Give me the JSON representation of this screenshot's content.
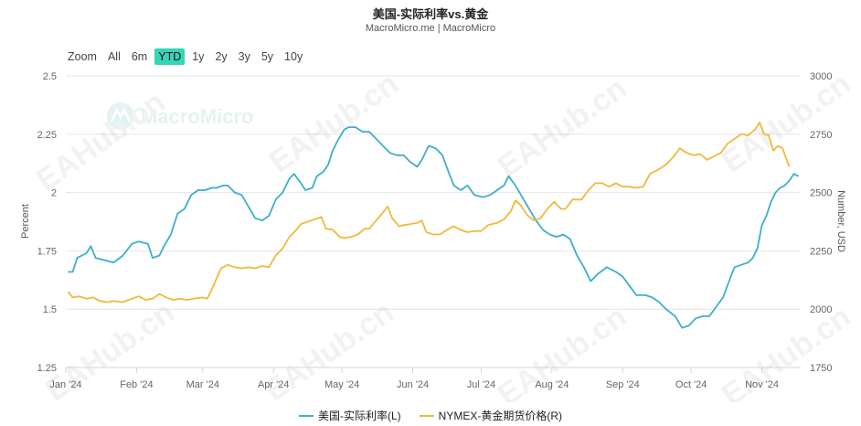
{
  "header": {
    "title": "美国-实际利率vs.黄金",
    "subtitle": "MacroMicro.me | MacroMicro"
  },
  "zoom": {
    "label": "Zoom",
    "buttons": [
      "All",
      "6m",
      "YTD",
      "1y",
      "2y",
      "3y",
      "5y",
      "10y"
    ],
    "active": "YTD"
  },
  "watermarks": {
    "brand": "MacroMicro",
    "site": "EAHub.cn"
  },
  "colors": {
    "real_rate": "#3eaecb",
    "gold": "#f0b93a",
    "zoom_active": "#35d5b8"
  },
  "chart_data": {
    "type": "line",
    "title": "美国-实际利率vs.黄金",
    "subtitle": "MacroMicro.me | MacroMicro",
    "x_type": "date",
    "x_ticks": [
      "Jan '24",
      "Feb '24",
      "Mar '24",
      "Apr '24",
      "May '24",
      "Jun '24",
      "Jul '24",
      "Aug '24",
      "Sep '24",
      "Oct '24",
      "Nov '24"
    ],
    "x_tick_dates": [
      "2024-01-01",
      "2024-02-01",
      "2024-03-01",
      "2024-04-01",
      "2024-05-01",
      "2024-06-01",
      "2024-07-01",
      "2024-08-01",
      "2024-09-01",
      "2024-10-01",
      "2024-11-01"
    ],
    "left_axis": {
      "label": "Percent",
      "range": [
        1.25,
        2.5
      ],
      "ticks": [
        1.25,
        1.5,
        1.75,
        2,
        2.25,
        2.5
      ],
      "tick_labels": [
        "1.25",
        "1.5",
        "1.75",
        "2",
        "2.25",
        "2.5"
      ]
    },
    "right_axis": {
      "label": "Number, USD",
      "range": [
        1750,
        3000
      ],
      "ticks": [
        1750,
        2000,
        2250,
        2500,
        2750,
        3000
      ],
      "tick_labels": [
        "1750",
        "2000",
        "2250",
        "2500",
        "2750",
        "3000"
      ]
    },
    "grid": true,
    "legend_position": "bottom-center",
    "series": [
      {
        "name": "美国-实际利率(L)",
        "axis": "left",
        "color": "#3eaecb",
        "points": [
          [
            "2024-01-02",
            1.66
          ],
          [
            "2024-01-04",
            1.66
          ],
          [
            "2024-01-06",
            1.72
          ],
          [
            "2024-01-10",
            1.74
          ],
          [
            "2024-01-12",
            1.77
          ],
          [
            "2024-01-14",
            1.72
          ],
          [
            "2024-01-18",
            1.71
          ],
          [
            "2024-01-22",
            1.7
          ],
          [
            "2024-01-26",
            1.73
          ],
          [
            "2024-01-30",
            1.78
          ],
          [
            "2024-02-02",
            1.79
          ],
          [
            "2024-02-06",
            1.78
          ],
          [
            "2024-02-08",
            1.72
          ],
          [
            "2024-02-11",
            1.73
          ],
          [
            "2024-02-13",
            1.77
          ],
          [
            "2024-02-16",
            1.82
          ],
          [
            "2024-02-19",
            1.91
          ],
          [
            "2024-02-22",
            1.93
          ],
          [
            "2024-02-25",
            1.99
          ],
          [
            "2024-02-28",
            2.01
          ],
          [
            "2024-03-02",
            2.01
          ],
          [
            "2024-03-05",
            2.02
          ],
          [
            "2024-03-07",
            2.02
          ],
          [
            "2024-03-10",
            2.03
          ],
          [
            "2024-03-12",
            2.03
          ],
          [
            "2024-03-15",
            2.0
          ],
          [
            "2024-03-18",
            1.99
          ],
          [
            "2024-03-21",
            1.94
          ],
          [
            "2024-03-24",
            1.89
          ],
          [
            "2024-03-27",
            1.88
          ],
          [
            "2024-03-30",
            1.9
          ],
          [
            "2024-04-02",
            1.97
          ],
          [
            "2024-04-05",
            2.0
          ],
          [
            "2024-04-08",
            2.06
          ],
          [
            "2024-04-10",
            2.08
          ],
          [
            "2024-04-13",
            2.04
          ],
          [
            "2024-04-15",
            2.01
          ],
          [
            "2024-04-18",
            2.02
          ],
          [
            "2024-04-20",
            2.07
          ],
          [
            "2024-04-23",
            2.09
          ],
          [
            "2024-04-25",
            2.12
          ],
          [
            "2024-04-27",
            2.18
          ],
          [
            "2024-04-29",
            2.22
          ],
          [
            "2024-05-02",
            2.27
          ],
          [
            "2024-05-04",
            2.28
          ],
          [
            "2024-05-07",
            2.28
          ],
          [
            "2024-05-10",
            2.26
          ],
          [
            "2024-05-13",
            2.26
          ],
          [
            "2024-05-16",
            2.23
          ],
          [
            "2024-05-19",
            2.2
          ],
          [
            "2024-05-22",
            2.17
          ],
          [
            "2024-05-25",
            2.16
          ],
          [
            "2024-05-28",
            2.16
          ],
          [
            "2024-05-31",
            2.13
          ],
          [
            "2024-06-03",
            2.11
          ],
          [
            "2024-06-05",
            2.14
          ],
          [
            "2024-06-08",
            2.2
          ],
          [
            "2024-06-11",
            2.19
          ],
          [
            "2024-06-14",
            2.16
          ],
          [
            "2024-06-17",
            2.08
          ],
          [
            "2024-06-19",
            2.03
          ],
          [
            "2024-06-22",
            2.01
          ],
          [
            "2024-06-25",
            2.03
          ],
          [
            "2024-06-28",
            1.99
          ],
          [
            "2024-07-02",
            1.98
          ],
          [
            "2024-07-05",
            1.99
          ],
          [
            "2024-07-08",
            2.01
          ],
          [
            "2024-07-11",
            2.03
          ],
          [
            "2024-07-13",
            2.07
          ],
          [
            "2024-07-16",
            2.03
          ],
          [
            "2024-07-19",
            1.98
          ],
          [
            "2024-07-22",
            1.93
          ],
          [
            "2024-07-25",
            1.88
          ],
          [
            "2024-07-28",
            1.84
          ],
          [
            "2024-07-31",
            1.82
          ],
          [
            "2024-08-03",
            1.81
          ],
          [
            "2024-08-06",
            1.82
          ],
          [
            "2024-08-09",
            1.8
          ],
          [
            "2024-08-12",
            1.73
          ],
          [
            "2024-08-15",
            1.68
          ],
          [
            "2024-08-18",
            1.62
          ],
          [
            "2024-08-21",
            1.65
          ],
          [
            "2024-08-25",
            1.68
          ],
          [
            "2024-08-29",
            1.66
          ],
          [
            "2024-09-01",
            1.64
          ],
          [
            "2024-09-04",
            1.6
          ],
          [
            "2024-09-07",
            1.56
          ],
          [
            "2024-09-11",
            1.56
          ],
          [
            "2024-09-14",
            1.55
          ],
          [
            "2024-09-17",
            1.53
          ],
          [
            "2024-09-20",
            1.5
          ],
          [
            "2024-09-24",
            1.47
          ],
          [
            "2024-09-27",
            1.42
          ],
          [
            "2024-09-30",
            1.43
          ],
          [
            "2024-10-03",
            1.46
          ],
          [
            "2024-10-06",
            1.47
          ],
          [
            "2024-10-09",
            1.47
          ],
          [
            "2024-10-12",
            1.51
          ],
          [
            "2024-10-15",
            1.55
          ],
          [
            "2024-10-18",
            1.63
          ],
          [
            "2024-10-20",
            1.68
          ],
          [
            "2024-10-23",
            1.69
          ],
          [
            "2024-10-26",
            1.7
          ],
          [
            "2024-10-28",
            1.72
          ],
          [
            "2024-10-30",
            1.76
          ],
          [
            "2024-11-01",
            1.86
          ],
          [
            "2024-11-03",
            1.9
          ],
          [
            "2024-11-05",
            1.96
          ],
          [
            "2024-11-07",
            2.0
          ],
          [
            "2024-11-09",
            2.02
          ],
          [
            "2024-11-11",
            2.03
          ],
          [
            "2024-11-13",
            2.05
          ],
          [
            "2024-11-15",
            2.08
          ],
          [
            "2024-11-17",
            2.07
          ]
        ]
      },
      {
        "name": "NYMEX-黄金期货价格(R)",
        "axis": "right",
        "color": "#f0b93a",
        "points": [
          [
            "2024-01-02",
            2075
          ],
          [
            "2024-01-04",
            2050
          ],
          [
            "2024-01-07",
            2055
          ],
          [
            "2024-01-10",
            2045
          ],
          [
            "2024-01-13",
            2050
          ],
          [
            "2024-01-16",
            2035
          ],
          [
            "2024-01-19",
            2030
          ],
          [
            "2024-01-22",
            2035
          ],
          [
            "2024-01-26",
            2030
          ],
          [
            "2024-01-30",
            2045
          ],
          [
            "2024-02-02",
            2055
          ],
          [
            "2024-02-05",
            2040
          ],
          [
            "2024-02-08",
            2045
          ],
          [
            "2024-02-11",
            2065
          ],
          [
            "2024-02-14",
            2050
          ],
          [
            "2024-02-17",
            2040
          ],
          [
            "2024-02-20",
            2045
          ],
          [
            "2024-02-23",
            2040
          ],
          [
            "2024-02-26",
            2045
          ],
          [
            "2024-03-01",
            2050
          ],
          [
            "2024-03-03",
            2045
          ],
          [
            "2024-03-05",
            2085
          ],
          [
            "2024-03-07",
            2130
          ],
          [
            "2024-03-09",
            2175
          ],
          [
            "2024-03-12",
            2190
          ],
          [
            "2024-03-15",
            2180
          ],
          [
            "2024-03-18",
            2175
          ],
          [
            "2024-03-21",
            2180
          ],
          [
            "2024-03-24",
            2175
          ],
          [
            "2024-03-27",
            2185
          ],
          [
            "2024-03-30",
            2180
          ],
          [
            "2024-04-02",
            2230
          ],
          [
            "2024-04-05",
            2260
          ],
          [
            "2024-04-08",
            2310
          ],
          [
            "2024-04-11",
            2340
          ],
          [
            "2024-04-13",
            2365
          ],
          [
            "2024-04-16",
            2375
          ],
          [
            "2024-04-19",
            2385
          ],
          [
            "2024-04-22",
            2395
          ],
          [
            "2024-04-24",
            2345
          ],
          [
            "2024-04-27",
            2340
          ],
          [
            "2024-04-30",
            2310
          ],
          [
            "2024-05-02",
            2305
          ],
          [
            "2024-05-05",
            2310
          ],
          [
            "2024-05-08",
            2320
          ],
          [
            "2024-05-11",
            2345
          ],
          [
            "2024-05-13",
            2345
          ],
          [
            "2024-05-16",
            2380
          ],
          [
            "2024-05-19",
            2415
          ],
          [
            "2024-05-21",
            2440
          ],
          [
            "2024-05-23",
            2390
          ],
          [
            "2024-05-26",
            2355
          ],
          [
            "2024-05-28",
            2360
          ],
          [
            "2024-05-31",
            2365
          ],
          [
            "2024-06-03",
            2370
          ],
          [
            "2024-06-05",
            2380
          ],
          [
            "2024-06-07",
            2330
          ],
          [
            "2024-06-10",
            2320
          ],
          [
            "2024-06-13",
            2320
          ],
          [
            "2024-06-16",
            2340
          ],
          [
            "2024-06-19",
            2355
          ],
          [
            "2024-06-22",
            2340
          ],
          [
            "2024-06-25",
            2330
          ],
          [
            "2024-06-28",
            2335
          ],
          [
            "2024-07-01",
            2335
          ],
          [
            "2024-07-04",
            2360
          ],
          [
            "2024-07-08",
            2370
          ],
          [
            "2024-07-11",
            2385
          ],
          [
            "2024-07-14",
            2420
          ],
          [
            "2024-07-16",
            2465
          ],
          [
            "2024-07-18",
            2450
          ],
          [
            "2024-07-21",
            2405
          ],
          [
            "2024-07-24",
            2380
          ],
          [
            "2024-07-27",
            2390
          ],
          [
            "2024-07-30",
            2430
          ],
          [
            "2024-08-02",
            2460
          ],
          [
            "2024-08-05",
            2430
          ],
          [
            "2024-08-07",
            2430
          ],
          [
            "2024-08-10",
            2470
          ],
          [
            "2024-08-14",
            2470
          ],
          [
            "2024-08-17",
            2510
          ],
          [
            "2024-08-20",
            2540
          ],
          [
            "2024-08-23",
            2540
          ],
          [
            "2024-08-26",
            2525
          ],
          [
            "2024-08-29",
            2540
          ],
          [
            "2024-09-01",
            2525
          ],
          [
            "2024-09-04",
            2525
          ],
          [
            "2024-09-07",
            2520
          ],
          [
            "2024-09-10",
            2525
          ],
          [
            "2024-09-13",
            2580
          ],
          [
            "2024-09-17",
            2600
          ],
          [
            "2024-09-20",
            2620
          ],
          [
            "2024-09-23",
            2650
          ],
          [
            "2024-09-26",
            2690
          ],
          [
            "2024-09-29",
            2670
          ],
          [
            "2024-10-02",
            2660
          ],
          [
            "2024-10-05",
            2665
          ],
          [
            "2024-10-08",
            2640
          ],
          [
            "2024-10-11",
            2655
          ],
          [
            "2024-10-14",
            2670
          ],
          [
            "2024-10-17",
            2710
          ],
          [
            "2024-10-20",
            2730
          ],
          [
            "2024-10-23",
            2750
          ],
          [
            "2024-10-26",
            2745
          ],
          [
            "2024-10-29",
            2770
          ],
          [
            "2024-10-31",
            2800
          ],
          [
            "2024-11-02",
            2750
          ],
          [
            "2024-11-04",
            2745
          ],
          [
            "2024-11-06",
            2680
          ],
          [
            "2024-11-08",
            2700
          ],
          [
            "2024-11-10",
            2690
          ],
          [
            "2024-11-13",
            2610
          ]
        ]
      }
    ]
  }
}
